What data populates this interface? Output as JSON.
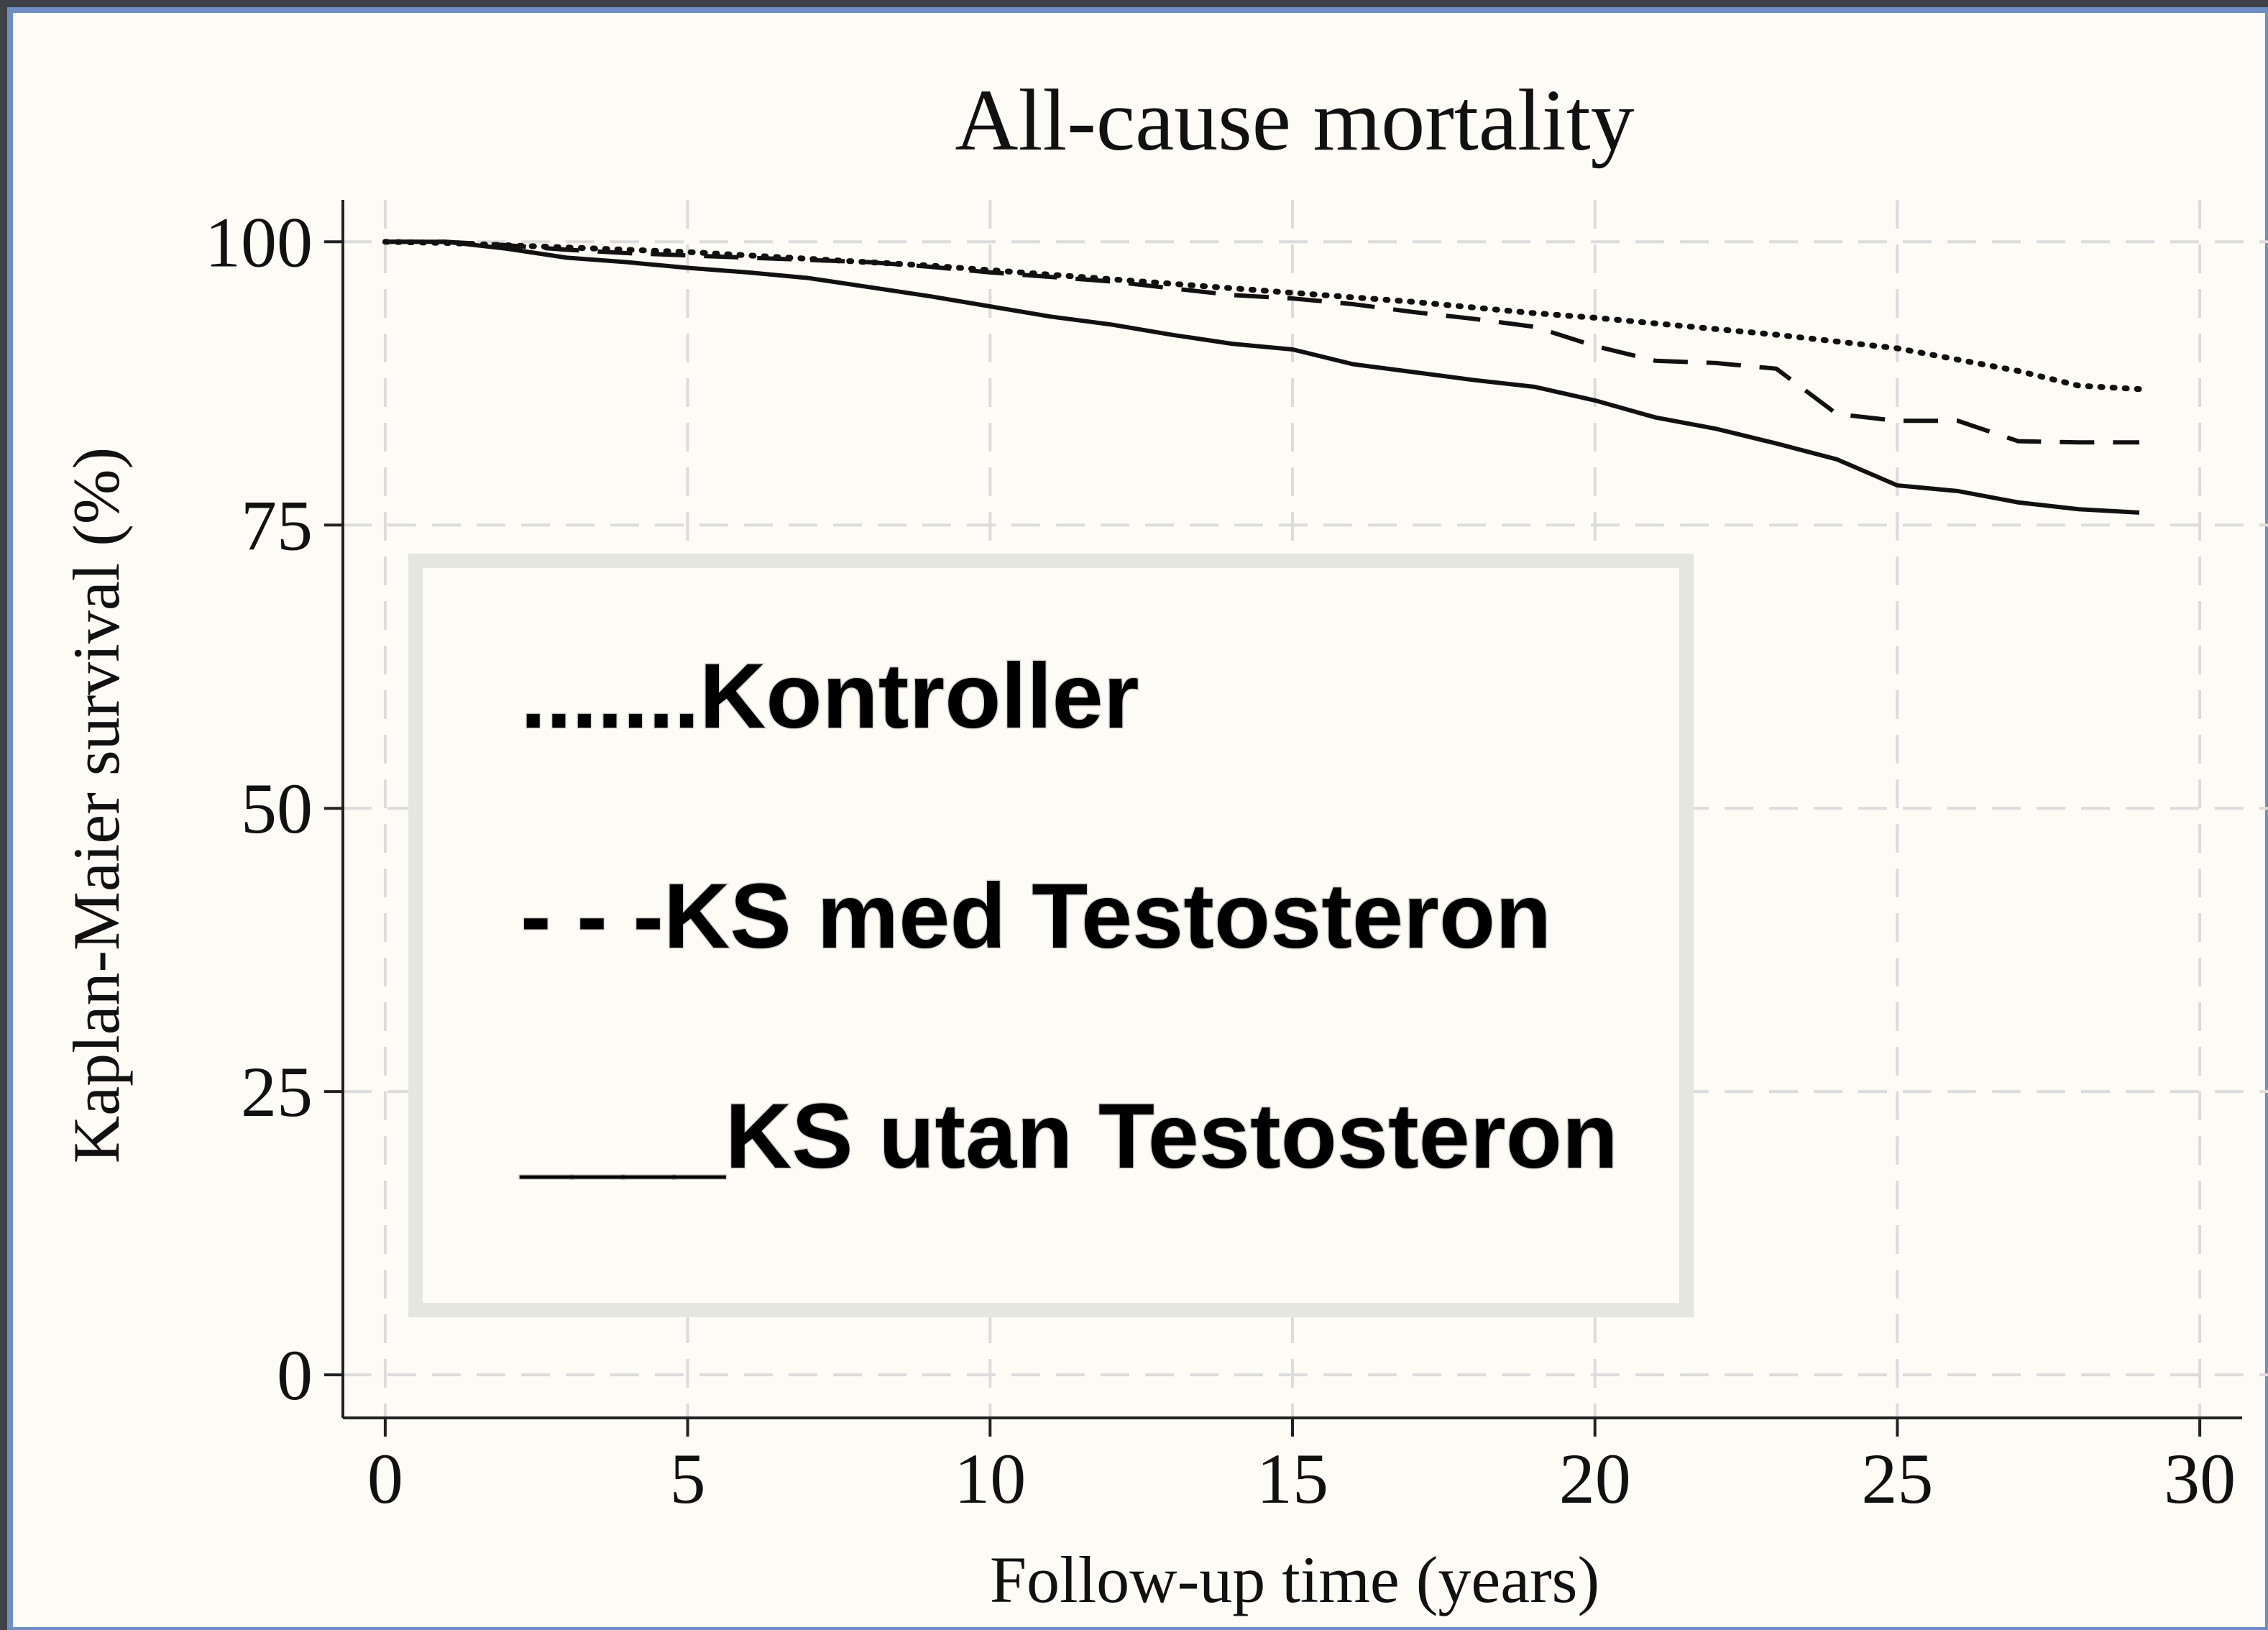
{
  "chart_data": {
    "type": "line",
    "title": "All-cause mortality",
    "xlabel": "Follow-up time (years)",
    "ylabel": "Kaplan-Maier survival (%)",
    "x": [
      0,
      1,
      2,
      3,
      4,
      5,
      6,
      7,
      8,
      9,
      10,
      11,
      12,
      13,
      14,
      15,
      16,
      17,
      18,
      19,
      20,
      21,
      22,
      23,
      24,
      25,
      26,
      27,
      28,
      29
    ],
    "series": [
      {
        "name": ".......Kontroller",
        "color": "#111111",
        "dash": "dotted",
        "values": [
          100,
          99.9,
          99.7,
          99.5,
          99.3,
          99.1,
          98.8,
          98.5,
          98.2,
          97.9,
          97.5,
          97.1,
          96.7,
          96.3,
          95.9,
          95.5,
          95.1,
          94.7,
          94.2,
          93.7,
          93.3,
          92.8,
          92.3,
          91.8,
          91.2,
          90.6,
          89.6,
          88.6,
          87.3,
          87.0
        ]
      },
      {
        "name": "- - -KS med Testosteron",
        "color": "#111111",
        "dash": "dashed",
        "values": [
          100,
          100,
          99.7,
          99.3,
          99.0,
          98.8,
          98.6,
          98.4,
          98.2,
          97.8,
          97.3,
          96.9,
          96.5,
          95.9,
          95.3,
          95.0,
          94.5,
          93.8,
          93.2,
          92.5,
          90.8,
          89.5,
          89.3,
          88.8,
          84.8,
          84.2,
          84.2,
          82.4,
          82.3,
          82.3
        ]
      },
      {
        "name": "____KS utan Testosteron",
        "color": "#111111",
        "dash": "solid",
        "values": [
          100,
          100,
          99.4,
          98.6,
          98.2,
          97.7,
          97.3,
          96.8,
          96.0,
          95.2,
          94.3,
          93.4,
          92.7,
          91.8,
          91.0,
          90.5,
          89.2,
          88.5,
          87.8,
          87.2,
          86.0,
          84.5,
          83.5,
          82.2,
          80.8,
          78.5,
          78.0,
          77.0,
          76.4,
          76.1
        ]
      }
    ],
    "xlim": [
      -0.7,
      30.7
    ],
    "ylim": [
      -3.8,
      103.7
    ],
    "xticks": [
      0,
      5,
      10,
      15,
      20,
      25,
      30
    ],
    "yticks": [
      0,
      25,
      50,
      75,
      100
    ],
    "grid": true
  }
}
